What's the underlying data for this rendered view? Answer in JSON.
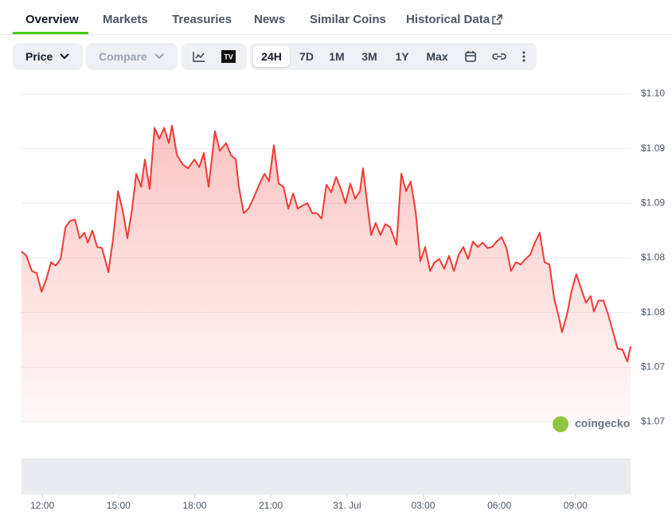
{
  "tabs": [
    "Overview",
    "Markets",
    "Treasuries",
    "News",
    "Similar Coins",
    "Historical Data"
  ],
  "toolbar": {
    "price": "Price",
    "compare": "Compare",
    "ranges": [
      "24H",
      "7D",
      "1M",
      "3M",
      "1Y",
      "Max"
    ]
  },
  "watermark": "coingecko",
  "chart_data": {
    "type": "line",
    "color": "#ef3b36",
    "grid": true,
    "x": [
      11.18,
      11.37,
      11.59,
      11.78,
      11.97,
      12.16,
      12.34,
      12.53,
      12.72,
      12.91,
      13.1,
      13.29,
      13.47,
      13.66,
      13.79,
      13.97,
      14.16,
      14.35,
      14.6,
      14.79,
      14.98,
      15.17,
      15.35,
      15.54,
      15.7,
      15.89,
      16.04,
      16.23,
      16.42,
      16.61,
      16.8,
      16.98,
      17.11,
      17.3,
      17.55,
      17.74,
      17.99,
      18.18,
      18.36,
      18.55,
      18.8,
      18.99,
      19.24,
      19.43,
      19.62,
      19.74,
      19.93,
      20.12,
      20.31,
      20.56,
      20.75,
      20.93,
      21.12,
      21.31,
      21.5,
      21.69,
      21.88,
      22.06,
      22.25,
      22.44,
      22.63,
      22.82,
      23.0,
      23.19,
      23.38,
      23.57,
      23.76,
      23.94,
      24.13,
      24.32,
      24.51,
      24.63,
      24.82,
      24.95,
      25.13,
      25.32,
      25.51,
      25.7,
      25.95,
      26.14,
      26.33,
      26.51,
      26.7,
      26.89,
      27.08,
      27.27,
      27.45,
      27.64,
      27.83,
      28.02,
      28.21,
      28.4,
      28.58,
      28.77,
      28.96,
      29.15,
      29.34,
      29.53,
      29.71,
      29.9,
      30.09,
      30.28,
      30.46,
      30.65,
      30.84,
      31.03,
      31.22,
      31.4,
      31.59,
      31.78,
      31.97,
      32.16,
      32.34,
      32.47,
      32.66,
      32.85,
      33.03,
      33.22,
      33.41,
      33.6,
      33.72,
      33.91,
      34.1,
      34.29,
      34.48,
      34.66,
      34.85,
      35.04,
      35.17
    ],
    "values": [
      1.0831,
      1.0827,
      1.0813,
      1.0811,
      1.0794,
      1.0806,
      1.0821,
      1.0818,
      1.0824,
      1.0853,
      1.0859,
      1.086,
      1.0843,
      1.0848,
      1.0839,
      1.085,
      1.0835,
      1.0834,
      1.0812,
      1.0843,
      1.0886,
      1.0868,
      1.0843,
      1.087,
      1.0902,
      1.089,
      1.0915,
      1.0888,
      1.0944,
      1.0934,
      1.0944,
      1.093,
      1.0946,
      1.0919,
      1.091,
      1.0907,
      1.0915,
      1.0908,
      1.0921,
      1.089,
      1.0941,
      1.0923,
      1.093,
      1.0919,
      1.0915,
      1.089,
      1.0866,
      1.087,
      1.0879,
      1.0893,
      1.0902,
      1.0895,
      1.0928,
      1.0893,
      1.089,
      1.087,
      1.0884,
      1.087,
      1.0873,
      1.0875,
      1.0866,
      1.0866,
      1.0861,
      1.0892,
      1.0885,
      1.0899,
      1.0888,
      1.0875,
      1.0893,
      1.0879,
      1.0886,
      1.0907,
      1.087,
      1.0846,
      1.0857,
      1.0846,
      1.0856,
      1.0853,
      1.0837,
      1.0902,
      1.0886,
      1.0895,
      1.0868,
      1.0822,
      1.0835,
      1.0813,
      1.0821,
      1.0824,
      1.0815,
      1.0827,
      1.0813,
      1.0828,
      1.0835,
      1.0824,
      1.084,
      1.0835,
      1.0839,
      1.0834,
      1.0835,
      1.084,
      1.0844,
      1.0834,
      1.0813,
      1.0821,
      1.0819,
      1.0824,
      1.0828,
      1.0839,
      1.0848,
      1.0821,
      1.0819,
      1.0788,
      1.0771,
      1.0757,
      1.0773,
      1.0795,
      1.081,
      1.0797,
      1.0784,
      1.079,
      1.0776,
      1.0786,
      1.0786,
      1.0773,
      1.0757,
      1.0742,
      1.0741,
      1.073,
      1.0744
    ],
    "xlim": [
      11.18,
      35.17
    ],
    "xticks": [
      {
        "value": 12,
        "label": "12:00"
      },
      {
        "value": 15,
        "label": "15:00"
      },
      {
        "value": 18,
        "label": "18:00"
      },
      {
        "value": 21,
        "label": "21:00"
      },
      {
        "value": 24,
        "label": "31. Jul"
      },
      {
        "value": 27,
        "label": "03:00"
      },
      {
        "value": 30,
        "label": "06:00"
      },
      {
        "value": 33,
        "label": "09:00"
      }
    ],
    "ylim": [
      1.0675,
      1.0975
    ],
    "yticks": [
      {
        "value": 1.0975,
        "label": "$1.10"
      },
      {
        "value": 1.0925,
        "label": "$1.09"
      },
      {
        "value": 1.0875,
        "label": "$1.09"
      },
      {
        "value": 1.0825,
        "label": "$1.08"
      },
      {
        "value": 1.0775,
        "label": "$1.08"
      },
      {
        "value": 1.0725,
        "label": "$1.07"
      },
      {
        "value": 1.0675,
        "label": "$1.07"
      }
    ]
  }
}
